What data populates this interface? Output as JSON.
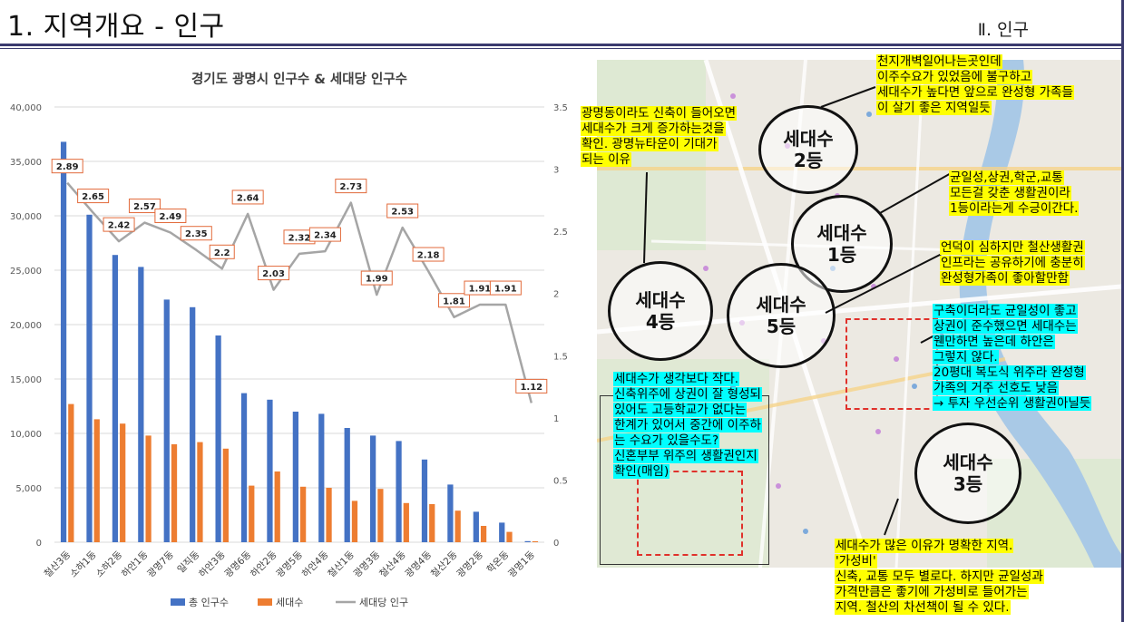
{
  "header": {
    "title": "1. 지역개요 - 인구",
    "section": "Ⅱ. 인구"
  },
  "chart_data": {
    "type": "bar",
    "title": "경기도 광명시 인구수 & 세대당 인구수",
    "categories": [
      "철산3동",
      "소하1동",
      "소하2동",
      "하안1동",
      "광명7동",
      "일직동",
      "하안3동",
      "광명6동",
      "하안2동",
      "광명5동",
      "하안4동",
      "철산1동",
      "광명3동",
      "철산4동",
      "광명4동",
      "철산2동",
      "광명2동",
      "학온동",
      "광명1동"
    ],
    "series": [
      {
        "name": "총 인구수",
        "axis": "left",
        "type": "bar",
        "color": "#4472c4",
        "values": [
          36800,
          30100,
          26400,
          25300,
          22300,
          21600,
          19000,
          13700,
          13100,
          12000,
          11800,
          10500,
          9800,
          9300,
          7600,
          5300,
          2800,
          1800,
          100
        ]
      },
      {
        "name": "세대수",
        "axis": "left",
        "type": "bar",
        "color": "#ed7d31",
        "values": [
          12700,
          11300,
          10900,
          9800,
          9000,
          9200,
          8600,
          5200,
          6500,
          5100,
          5000,
          3800,
          4900,
          3600,
          3500,
          2900,
          1500,
          950,
          90
        ]
      },
      {
        "name": "세대당 인구",
        "axis": "right",
        "type": "line",
        "color": "#a5a5a5",
        "values": [
          2.89,
          2.65,
          2.42,
          2.57,
          2.49,
          2.35,
          2.2,
          2.64,
          2.03,
          2.32,
          2.34,
          2.73,
          1.99,
          2.53,
          2.18,
          1.81,
          1.91,
          1.91,
          1.12
        ],
        "labels": [
          "2.89",
          "2.65",
          "2.42",
          "2.57",
          "2.49",
          "2.35",
          "2.2",
          "2.64",
          "2.03",
          "2.32",
          "2.34",
          "2.73",
          "1.99",
          "2.53",
          "2.18",
          "1.81",
          "1.91",
          "1.91",
          "1.12"
        ]
      }
    ],
    "y_left": {
      "min": 0,
      "max": 40000,
      "ticks": [
        "0",
        "5,000",
        "10,000",
        "15,000",
        "20,000",
        "25,000",
        "30,000",
        "35,000",
        "40,000"
      ]
    },
    "y_right": {
      "min": 0,
      "max": 3.5,
      "ticks": [
        "0",
        "0.5",
        "1",
        "1.5",
        "2",
        "2.5",
        "3",
        "3.5"
      ]
    },
    "legend_position": "bottom",
    "grid": true
  },
  "map": {
    "circles": [
      {
        "label1": "세대수",
        "label2": "2등"
      },
      {
        "label1": "세대수",
        "label2": "1등"
      },
      {
        "label1": "세대수",
        "label2": "4등"
      },
      {
        "label1": "세대수",
        "label2": "5등"
      },
      {
        "label1": "세대수",
        "label2": "3등"
      }
    ]
  },
  "annotations": {
    "a1": [
      "천지개벽일어나는곳인데",
      "이주수요가 있었음에 불구하고",
      "세대수가 높다면 앞으로 완성형 가족들",
      "이 살기 좋은 지역일듯"
    ],
    "a2": [
      "광명동이라도 신축이 들어오면",
      "세대수가 크게 증가하는것을",
      "확인. 광명뉴타운이 기대가",
      "되는 이유"
    ],
    "a3": [
      "균일성,상권,학군,교통",
      "모든걸 갖춘 생활권이라",
      "1등이라는게 수긍이간다."
    ],
    "a4": [
      "언덕이 심하지만 철산생활권",
      "인프라는 공유하기에 충분히",
      "완성형가족이 좋아할만함"
    ],
    "a5": [
      "구축이더라도 균일성이 좋고",
      "상권이 준수했으면 세대수는",
      "웬만하면 높은데 하안은",
      "그렇지 않다.",
      "20평대 복도식 위주라 완성형",
      "가족의 거주 선호도 낮음",
      "→ 투자 우선순위 생활권아닐듯"
    ],
    "a6": [
      "세대수가 생각보다 작다.",
      "신축위주에 상권이 잘 형성되",
      "있어도 고등학교가 없다는",
      "한계가 있어서 중간에 이주하",
      "는 수요가 있을수도?",
      "신혼부부 위주의 생활권인지",
      "확인(매임)"
    ],
    "a7": [
      "세대수가 많은 이유가 명확한 지역.",
      "'가성비'",
      "신축, 교통 모두 별로다. 하지만 균일성과",
      "가격만큼은 좋기에 가성비로 들어가는",
      "지역. 철산의 차선책이 될 수 있다."
    ]
  }
}
